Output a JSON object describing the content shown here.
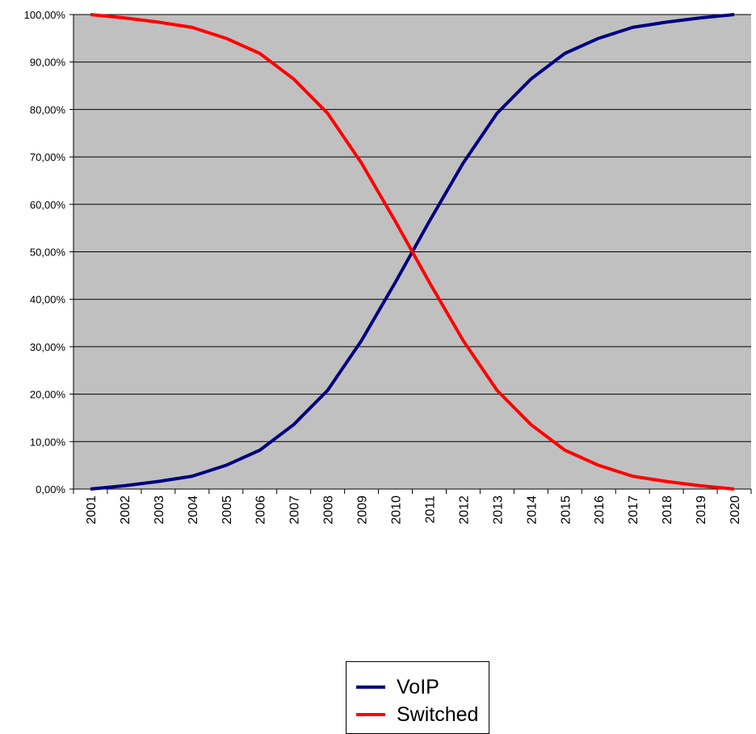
{
  "chart_data": {
    "type": "line",
    "title": "",
    "xlabel": "",
    "ylabel": "",
    "x": [
      "2001",
      "2002",
      "2003",
      "2004",
      "2005",
      "2006",
      "2007",
      "2008",
      "2009",
      "2010",
      "2011",
      "2012",
      "2013",
      "2014",
      "2015",
      "2016",
      "2017",
      "2018",
      "2019",
      "2020"
    ],
    "ylim": [
      0,
      100
    ],
    "yticks": [
      0,
      10,
      20,
      30,
      40,
      50,
      60,
      70,
      80,
      90,
      100
    ],
    "ytick_labels": [
      "0,00%",
      "10,00%",
      "20,00%",
      "30,00%",
      "40,00%",
      "50,00%",
      "60,00%",
      "70,00%",
      "80,00%",
      "90,00%",
      "100,00%"
    ],
    "grid": true,
    "plot_background": "#C0C0C0",
    "legend_position": "bottom-center",
    "series": [
      {
        "name": "VoIP",
        "color": "#000080",
        "values": [
          0.0,
          0.7,
          1.6,
          2.7,
          5.0,
          8.2,
          13.6,
          20.8,
          31.3,
          43.6,
          56.4,
          68.7,
          79.2,
          86.4,
          91.8,
          95.0,
          97.3,
          98.4,
          99.3,
          100.0
        ]
      },
      {
        "name": "Switched",
        "color": "#FF0000",
        "values": [
          100.0,
          99.3,
          98.4,
          97.3,
          95.0,
          91.8,
          86.4,
          79.2,
          68.7,
          56.4,
          43.6,
          31.3,
          20.8,
          13.6,
          8.2,
          5.0,
          2.7,
          1.6,
          0.7,
          0.0
        ]
      }
    ]
  }
}
